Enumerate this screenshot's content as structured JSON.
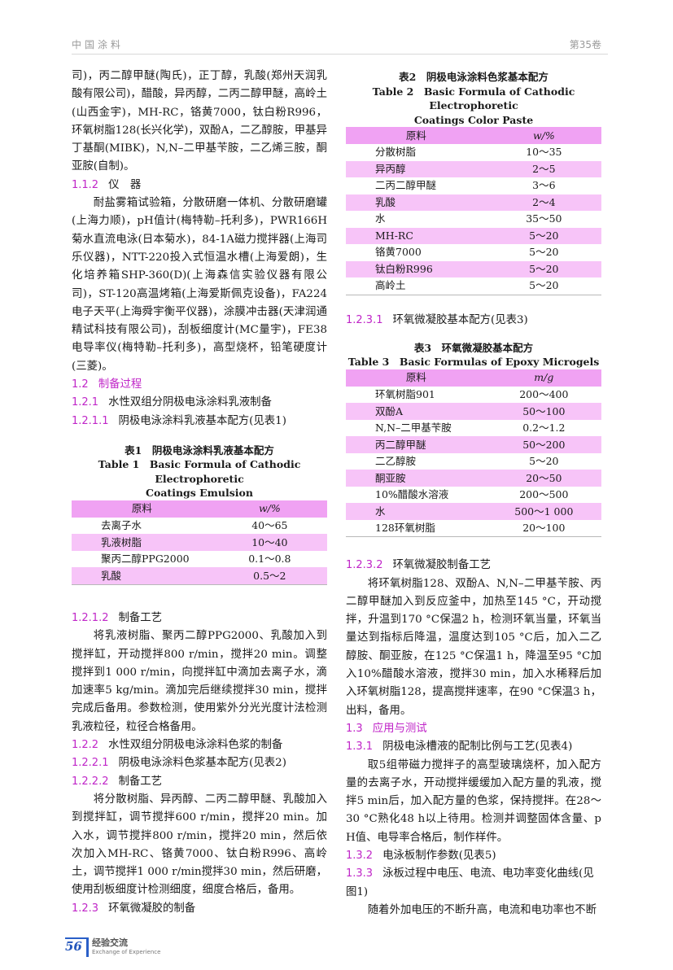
{
  "header": {
    "journal": "中国涂料",
    "volume": "第35卷"
  },
  "footer": {
    "page_number": "56",
    "section_zh": "经验交流",
    "section_en": "Exchange of Experience",
    "accent_color": "#2a5fc8"
  },
  "colors": {
    "heading": "#c026c8",
    "table_header": "#f0a2f3",
    "table_alt_row": "#f7c4f8"
  },
  "left": {
    "p1": "司)，丙二醇甲醚(陶氏)，正丁醇，乳酸(郑州天润乳酸有限公司)，醋酸，异丙醇，二丙二醇甲醚，高岭土(山西金宇)，MH-RC，铬黄7000，钛白粉R996，环氧树脂128(长兴化学)，双酚A，二乙醇胺，甲基异丁基酮(MIBK)，N,N–二甲基苄胺，二乙烯三胺，酮亚胺(自制)。",
    "h112": {
      "num": "1.1.2",
      "title": "仪　器"
    },
    "p2": "耐盐雾箱试验箱，分散研磨一体机、分散研磨罐(上海力顺)，pH值计(梅特勒–托利多)，PWR166H菊水直流电泳(日本菊水)，84-1A磁力搅拌器(上海司乐仪器)，NTT-220投入式恒温水槽(上海爱朗)，生化培养箱SHP-360(D)(上海森信实验仪器有限公司)，ST-120高温烤箱(上海爱斯佩克设备)，FA224电子天平(上海舜宇衡平仪器)，涂膜冲击器(天津润通精试科技有限公司)，刮板细度计(MC量宇)，FE38电导率仪(梅特勒–托利多)，高型烧杯，铅笔硬度计(三菱)。",
    "h12": {
      "num": "1.2",
      "title": "制备过程"
    },
    "h121": {
      "num": "1.2.1",
      "title": "水性双组分阴极电泳涂料乳液制备"
    },
    "h1211": {
      "num": "1.2.1.1",
      "title": "阴极电泳涂料乳液基本配方(见表1)"
    },
    "table1": {
      "caption_zh": "表1　阴极电泳涂料乳液基本配方",
      "caption_en_1": "Table 1　Basic Formula of Cathodic Electrophoretic",
      "caption_en_2": "Coatings Emulsion",
      "headers": [
        "原料",
        "w/%"
      ],
      "rows": [
        [
          "去离子水",
          "40～65"
        ],
        [
          "乳液树脂",
          "10～40"
        ],
        [
          "聚丙二醇PPG2000",
          "0.1～0.8"
        ],
        [
          "乳酸",
          "0.5～2"
        ]
      ]
    },
    "h1212": {
      "num": "1.2.1.2",
      "title": "制备工艺"
    },
    "p3": "将乳液树脂、聚丙二醇PPG2000、乳酸加入到搅拌缸，开动搅拌800 r/min，搅拌20 min。调整搅拌到1 000 r/min，向搅拌缸中滴加去离子水，滴加速率5 kg/min。滴加完后继续搅拌30 min，搅拌完成后备用。参数检测，使用紫外分光光度计法检测乳液粒径，粒径合格备用。",
    "h122": {
      "num": "1.2.2",
      "title": "水性双组分阴极电泳涂料色浆的制备"
    },
    "h1221": {
      "num": "1.2.2.1",
      "title": "阴极电泳涂料色浆基本配方(见表2)"
    },
    "h1222": {
      "num": "1.2.2.2",
      "title": "制备工艺"
    },
    "p4": "将分散树脂、异丙醇、二丙二醇甲醚、乳酸加入到搅拌缸，调节搅拌600 r/min，搅拌20 min。加入水，调节搅拌800 r/min，搅拌20 min，然后依次加入MH-RC、铬黄7000、钛白粉R996、高岭土，调节搅拌1 000 r/min搅拌30 min，然后研磨，使用刮板细度计检测细度，细度合格后，备用。",
    "h123": {
      "num": "1.2.3",
      "title": "环氧微凝胶的制备"
    }
  },
  "right": {
    "table2": {
      "caption_zh": "表2　阴极电泳涂料色浆基本配方",
      "caption_en_1": "Table 2　Basic Formula of Cathodic Electrophoretic",
      "caption_en_2": "Coatings Color Paste",
      "headers": [
        "原料",
        "w/%"
      ],
      "rows": [
        [
          "分散树脂",
          "10～35"
        ],
        [
          "异丙醇",
          "2～5"
        ],
        [
          "二丙二醇甲醚",
          "3～6"
        ],
        [
          "乳酸",
          "2～4"
        ],
        [
          "水",
          "35～50"
        ],
        [
          "MH-RC",
          "5～20"
        ],
        [
          "铬黄7000",
          "5～20"
        ],
        [
          "钛白粉R996",
          "5～20"
        ],
        [
          "高岭土",
          "5～20"
        ]
      ]
    },
    "h1231": {
      "num": "1.2.3.1",
      "title": "环氧微凝胶基本配方(见表3)"
    },
    "table3": {
      "caption_zh": "表3　环氧微凝胶基本配方",
      "caption_en_1": "Table 3　Basic Formulas of Epoxy Microgels",
      "headers": [
        "原料",
        "m/g"
      ],
      "rows": [
        [
          "环氧树脂901",
          "200～400"
        ],
        [
          "双酚A",
          "50～100"
        ],
        [
          "N,N–二甲基苄胺",
          "0.2～1.2"
        ],
        [
          "丙二醇甲醚",
          "50～200"
        ],
        [
          "二乙醇胺",
          "5～20"
        ],
        [
          "酮亚胺",
          "20～50"
        ],
        [
          "10%醋酸水溶液",
          "200～500"
        ],
        [
          "水",
          "500～1 000"
        ],
        [
          "128环氧树脂",
          "20～100"
        ]
      ]
    },
    "h1232": {
      "num": "1.2.3.2",
      "title": "环氧微凝胶制备工艺"
    },
    "p5": "将环氧树脂128、双酚A、N,N–二甲基苄胺、丙二醇甲醚加入到反应釜中，加热至145 °C，开动搅拌，升温到170 °C保温2 h，检测环氧当量，环氧当量达到指标后降温，温度达到105 °C后，加入二乙醇胺、酮亚胺，在125 °C保温1 h，降温至95 °C加入10%醋酸水溶液，搅拌30 min，加入水稀释后加入环氧树脂128，提高搅拌速率，在90 °C保温3 h，出料，备用。",
    "h13": {
      "num": "1.3",
      "title": "应用与测试"
    },
    "h131": {
      "num": "1.3.1",
      "title": "阴极电泳槽液的配制比例与工艺(见表4)"
    },
    "p6": "取5组带磁力搅拌子的高型玻璃烧杯，加入配方量的去离子水，开动搅拌缓缓加入配方量的乳液，搅拌5 min后，加入配方量的色浆，保持搅拌。在28～30 °C熟化48 h以上待用。检测并调整固体含量、pH值、电导率合格后，制作样件。",
    "h132": {
      "num": "1.3.2",
      "title": "电泳板制作参数(见表5)"
    },
    "h133": {
      "num": "1.3.3",
      "title": "泳板过程中电压、电流、电功率变化曲线(见图1)"
    },
    "p7": "随着外加电压的不断升高，电流和电功率也不断"
  }
}
